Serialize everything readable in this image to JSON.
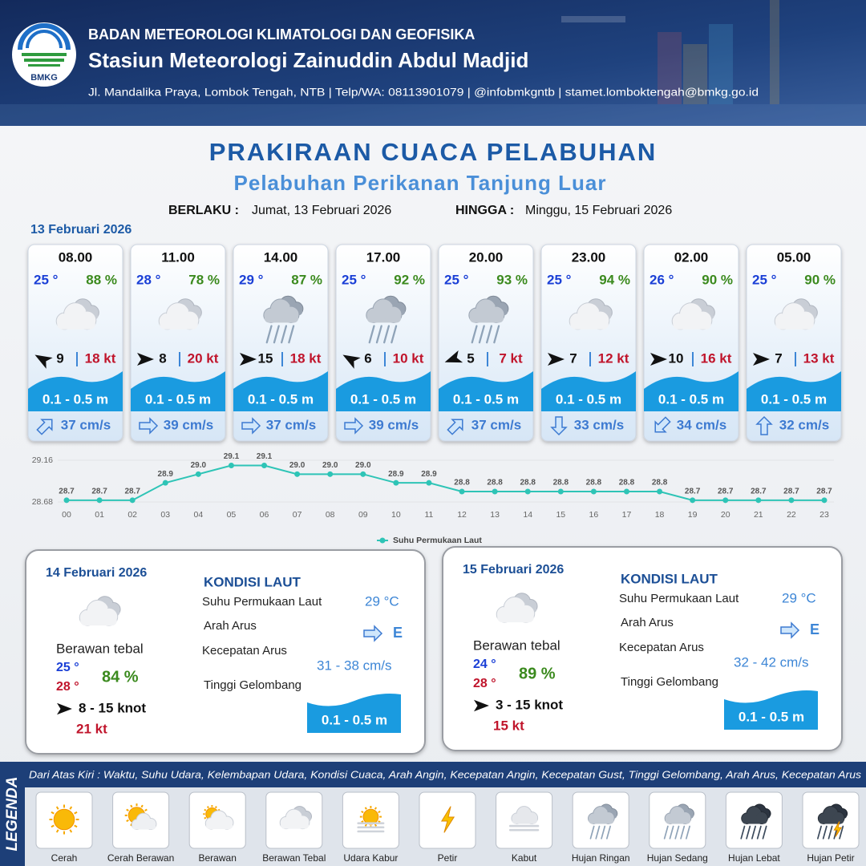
{
  "header": {
    "logo_text": "BMKG",
    "org": "BADAN METEOROLOGI KLIMATOLOGI DAN GEOFISIKA",
    "station": "Stasiun Meteorologi Zainuddin Abdul Madjid",
    "address": "Jl. Mandalika Praya, Lombok Tengah, NTB | Telp/WA: 08113901079 | @infobmkgntb | stamet.lomboktengah@bmkg.go.id"
  },
  "title": {
    "main": "PRAKIRAAN CUACA PELABUHAN",
    "subtitle": "Pelabuhan Perikanan Tanjung Luar",
    "valid_from_label": "BERLAKU :",
    "valid_from": "Jumat, 13 Februari 2026",
    "valid_to_label": "HINGGA :",
    "valid_to": "Minggu, 15 Februari 2026",
    "date": "13 Februari 2026"
  },
  "cards": [
    {
      "time": "08.00",
      "temp": "25 °",
      "humidity": "88 %",
      "icon": "berawan-tebal",
      "wind_arrow_deg": -150,
      "wind": "9",
      "gust": "18 kt",
      "wave": "0.1 - 0.5 m",
      "current_arrow_deg": -45,
      "current": "37 cm/s"
    },
    {
      "time": "11.00",
      "temp": "28 °",
      "humidity": "78 %",
      "icon": "berawan-tebal",
      "wind_arrow_deg": 0,
      "wind": "8",
      "gust": "20 kt",
      "wave": "0.1 - 0.5 m",
      "current_arrow_deg": 0,
      "current": "39 cm/s"
    },
    {
      "time": "14.00",
      "temp": "29 °",
      "humidity": "87 %",
      "icon": "hujan-ringan",
      "wind_arrow_deg": 0,
      "wind": "15",
      "gust": "18 kt",
      "wave": "0.1 - 0.5 m",
      "current_arrow_deg": 0,
      "current": "37 cm/s"
    },
    {
      "time": "17.00",
      "temp": "25 °",
      "humidity": "92 %",
      "icon": "hujan-ringan",
      "wind_arrow_deg": -150,
      "wind": "6",
      "gust": "10 kt",
      "wave": "0.1 - 0.5 m",
      "current_arrow_deg": 0,
      "current": "39 cm/s"
    },
    {
      "time": "20.00",
      "temp": "25 °",
      "humidity": "93 %",
      "icon": "hujan-ringan",
      "wind_arrow_deg": 160,
      "wind": "5",
      "gust": "7 kt",
      "wave": "0.1 - 0.5 m",
      "current_arrow_deg": -45,
      "current": "37 cm/s"
    },
    {
      "time": "23.00",
      "temp": "25 °",
      "humidity": "94 %",
      "icon": "berawan-tebal",
      "wind_arrow_deg": 0,
      "wind": "7",
      "gust": "12 kt",
      "wave": "0.1 - 0.5 m",
      "current_arrow_deg": 90,
      "current": "33 cm/s"
    },
    {
      "time": "02.00",
      "temp": "26 °",
      "humidity": "90 %",
      "icon": "berawan-tebal",
      "wind_arrow_deg": 0,
      "wind": "10",
      "gust": "16 kt",
      "wave": "0.1 - 0.5 m",
      "current_arrow_deg": 135,
      "current": "34 cm/s"
    },
    {
      "time": "05.00",
      "temp": "25 °",
      "humidity": "90 %",
      "icon": "berawan-tebal",
      "wind_arrow_deg": 0,
      "wind": "7",
      "gust": "13 kt",
      "wave": "0.1 - 0.5 m",
      "current_arrow_deg": -90,
      "current": "32 cm/s"
    }
  ],
  "sst_chart": {
    "type": "line",
    "x": [
      "00",
      "01",
      "02",
      "03",
      "04",
      "05",
      "06",
      "07",
      "08",
      "09",
      "10",
      "11",
      "12",
      "13",
      "14",
      "15",
      "16",
      "17",
      "18",
      "19",
      "20",
      "21",
      "22",
      "23"
    ],
    "series": [
      {
        "name": "Suhu Permukaan Laut",
        "color": "#2ec4b6",
        "values": [
          28.7,
          28.7,
          28.7,
          28.9,
          29.0,
          29.1,
          29.1,
          29.0,
          29.0,
          29.0,
          28.9,
          28.9,
          28.8,
          28.8,
          28.8,
          28.8,
          28.8,
          28.8,
          28.8,
          28.7,
          28.7,
          28.7,
          28.7,
          28.7
        ],
        "value_labels": [
          "28.7",
          "28.7",
          "28.7",
          "28.9",
          "29.0",
          "29.1",
          "29.1",
          "29.0",
          "29.0",
          "29.0",
          "28.9",
          "28.9",
          "28.8",
          "28.8",
          "28.8",
          "28.8",
          "28.8",
          "28.8",
          "28.8",
          "28.7",
          "28.7",
          "28.7",
          "28.7",
          "28.7"
        ]
      }
    ],
    "ylim": [
      28.68,
      29.16
    ],
    "yticks": [
      28.68,
      29.16
    ],
    "grid": true
  },
  "sea_labels": {
    "heading": "KONDISI LAUT",
    "sst": "Suhu Permukaan Laut",
    "current_dir": "Arah Arus",
    "current_speed": "Kecepatan Arus",
    "wave": "Tinggi Gelombang"
  },
  "days": [
    {
      "date": "14 Februari 2026",
      "icon": "berawan-tebal",
      "condition": "Berawan tebal",
      "temp_min": "25 °",
      "temp_max": "28 °",
      "humidity": "84 %",
      "wind": "8  - 15 knot",
      "gust": "21 kt",
      "sst": "29 °C",
      "current_dir": "E",
      "current_speed": "31 - 38 cm/s",
      "wave": "0.1 - 0.5 m"
    },
    {
      "date": "15 Februari 2026",
      "icon": "berawan-tebal",
      "condition": "Berawan tebal",
      "temp_min": "24 °",
      "temp_max": "28 °",
      "humidity": "89 %",
      "wind": "3  - 15 knot",
      "gust": "15 kt",
      "sst": "29 °C",
      "current_dir": "E",
      "current_speed": "32 - 42 cm/s",
      "wave": "0.1 - 0.5 m"
    }
  ],
  "legend": {
    "title": "LEGENDA",
    "note": "Dari Atas Kiri : Waktu, Suhu Udara, Kelembapan Udara, Kondisi Cuaca, Arah Angin, Kecepatan Angin, Kecepatan Gust, Tinggi Gelombang, Arah Arus, Kecepatan Arus",
    "items": [
      {
        "label": "Cerah",
        "icon": "cerah"
      },
      {
        "label": "Cerah Berawan",
        "icon": "cerah-berawan"
      },
      {
        "label": "Berawan",
        "icon": "berawan"
      },
      {
        "label": "Berawan Tebal",
        "icon": "berawan-tebal"
      },
      {
        "label": "Udara Kabur",
        "icon": "udara-kabur"
      },
      {
        "label": "Petir",
        "icon": "petir"
      },
      {
        "label": "Kabut",
        "icon": "kabut"
      },
      {
        "label": "Hujan Ringan",
        "icon": "hujan-ringan"
      },
      {
        "label": "Hujan Sedang",
        "icon": "hujan-sedang"
      },
      {
        "label": "Hujan Lebat",
        "icon": "hujan-lebat"
      },
      {
        "label": "Hujan Petir",
        "icon": "hujan-petir"
      }
    ]
  }
}
